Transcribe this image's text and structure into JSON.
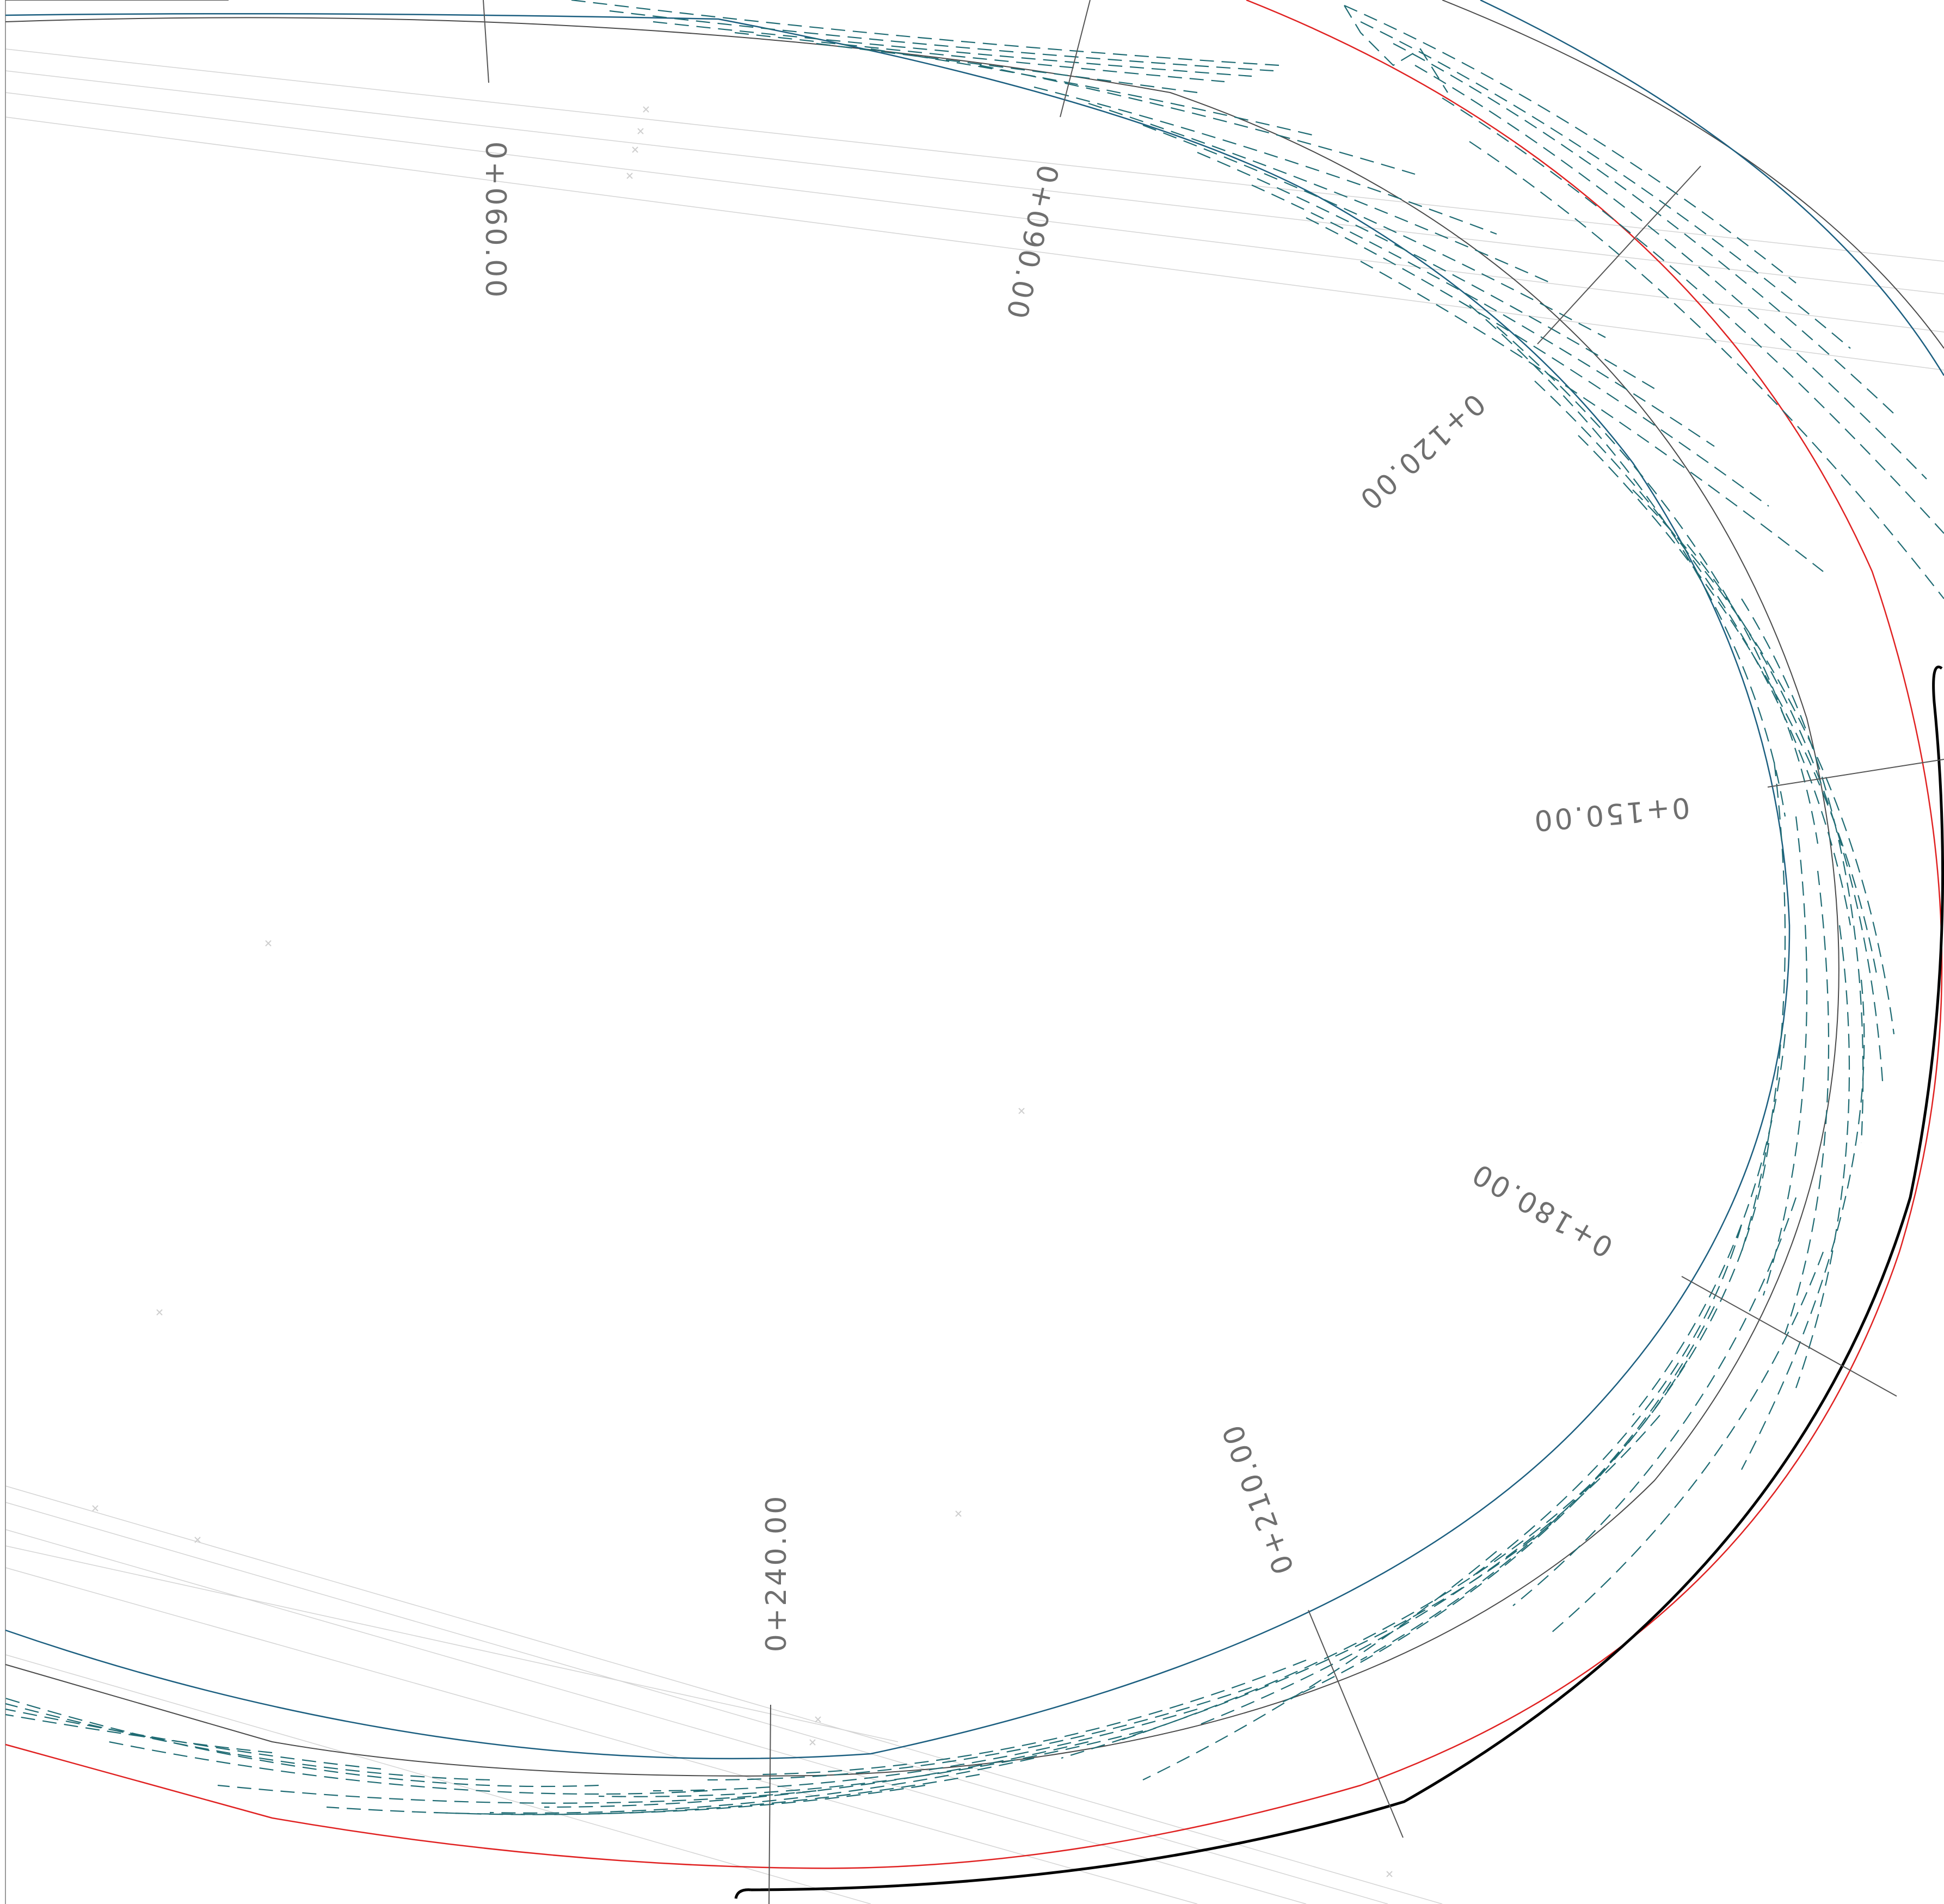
{
  "drawing": {
    "stations": [
      {
        "label": "0+060.00"
      },
      {
        "label": "0+090.00"
      },
      {
        "label": "0+120.00"
      },
      {
        "label": "0+150.00"
      },
      {
        "label": "0+180.00"
      },
      {
        "label": "0+210.00"
      },
      {
        "label": "0+240.00"
      }
    ],
    "colors": {
      "alignment": "#4a4a4a",
      "edge_blue": "#1c5f80",
      "edge_red": "#e02222",
      "edge_black": "#000000",
      "hatch": "#1f6b73",
      "labels": "#6f6f6f"
    }
  }
}
